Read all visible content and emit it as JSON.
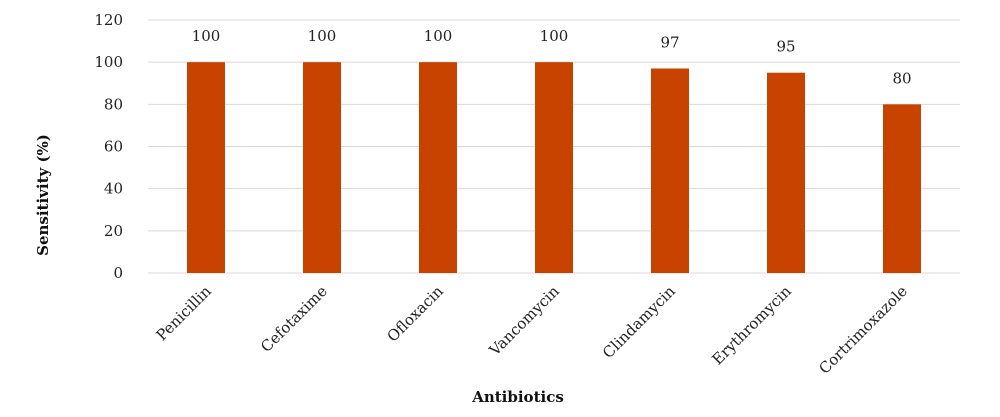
{
  "chart_data": {
    "type": "bar",
    "title": "",
    "xlabel": "Antibiotics",
    "ylabel": "Sensitivity (%)",
    "categories": [
      "Penicillin",
      "Cefotaxime",
      "Ofloxacin",
      "Vancomycin",
      "Clindamycin",
      "Erythromycin",
      "Cortrimoxazole"
    ],
    "values": [
      100,
      100,
      100,
      100,
      97,
      95,
      80
    ],
    "data_labels": [
      "100",
      "100",
      "100",
      "100",
      "97",
      "95",
      "80"
    ],
    "ylim": [
      0,
      120
    ],
    "yticks": [
      0,
      20,
      40,
      60,
      80,
      100,
      120
    ],
    "grid": true,
    "legend": "none",
    "bar_color": "#c84300"
  }
}
